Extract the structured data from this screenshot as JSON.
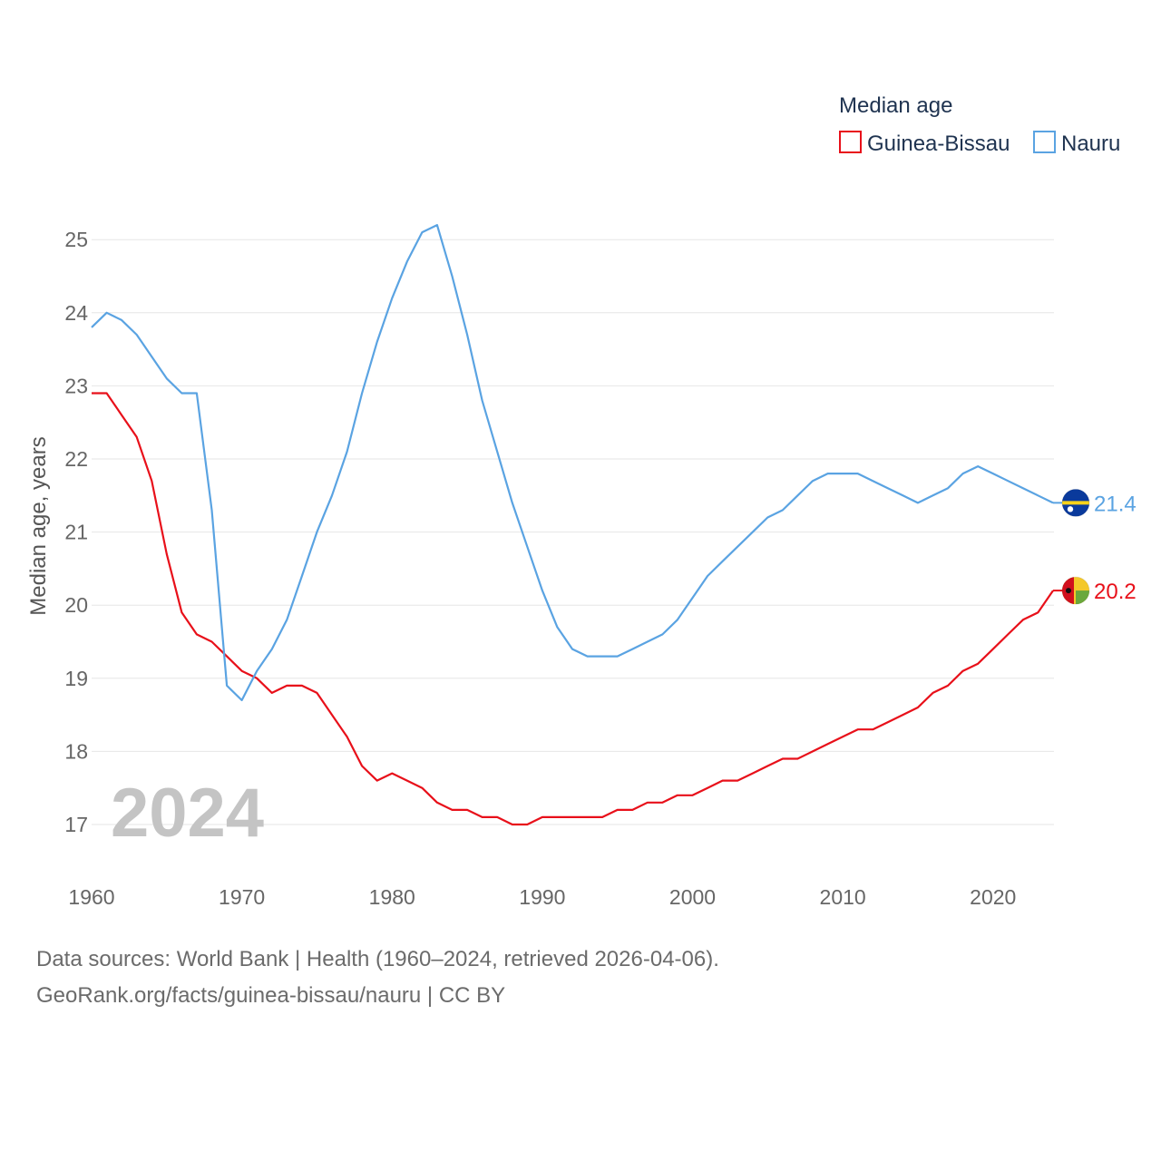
{
  "chart_data": {
    "type": "line",
    "legend_title": "Median age",
    "ylabel": "Median age, years",
    "xlabel": "",
    "watermark_year": "2024",
    "xlim": [
      1960,
      2024
    ],
    "ylim": [
      16.5,
      25.4
    ],
    "x_ticks": [
      1960,
      1970,
      1980,
      1990,
      2000,
      2010,
      2020
    ],
    "y_ticks": [
      17,
      18,
      19,
      20,
      21,
      22,
      23,
      24,
      25
    ],
    "legend_position": "top-right",
    "series": [
      {
        "name": "Guinea-Bissau",
        "color": "#e8101a",
        "end_label": "20.2",
        "flag_icon": "guinea-bissau-flag-icon",
        "x": [
          1960,
          1961,
          1962,
          1963,
          1964,
          1965,
          1966,
          1967,
          1968,
          1969,
          1970,
          1971,
          1972,
          1973,
          1974,
          1975,
          1976,
          1977,
          1978,
          1979,
          1980,
          1981,
          1982,
          1983,
          1984,
          1985,
          1986,
          1987,
          1988,
          1989,
          1990,
          1991,
          1992,
          1993,
          1994,
          1995,
          1996,
          1997,
          1998,
          1999,
          2000,
          2001,
          2002,
          2003,
          2004,
          2005,
          2006,
          2007,
          2008,
          2009,
          2010,
          2011,
          2012,
          2013,
          2014,
          2015,
          2016,
          2017,
          2018,
          2019,
          2020,
          2021,
          2022,
          2023,
          2024
        ],
        "values": [
          22.9,
          22.9,
          22.6,
          22.3,
          21.7,
          20.7,
          19.9,
          19.6,
          19.5,
          19.3,
          19.1,
          19.0,
          18.8,
          18.9,
          18.9,
          18.8,
          18.5,
          18.2,
          17.8,
          17.6,
          17.7,
          17.6,
          17.5,
          17.3,
          17.2,
          17.2,
          17.1,
          17.1,
          17.0,
          17.0,
          17.1,
          17.1,
          17.1,
          17.1,
          17.1,
          17.2,
          17.2,
          17.3,
          17.3,
          17.4,
          17.4,
          17.5,
          17.6,
          17.6,
          17.7,
          17.8,
          17.9,
          17.9,
          18.0,
          18.1,
          18.2,
          18.3,
          18.3,
          18.4,
          18.5,
          18.6,
          18.8,
          18.9,
          19.1,
          19.2,
          19.4,
          19.6,
          19.8,
          19.9,
          20.2
        ]
      },
      {
        "name": "Nauru",
        "color": "#5aa3e2",
        "end_label": "21.4",
        "flag_icon": "nauru-flag-icon",
        "x": [
          1960,
          1961,
          1962,
          1963,
          1964,
          1965,
          1966,
          1967,
          1968,
          1969,
          1970,
          1971,
          1972,
          1973,
          1974,
          1975,
          1976,
          1977,
          1978,
          1979,
          1980,
          1981,
          1982,
          1983,
          1984,
          1985,
          1986,
          1987,
          1988,
          1989,
          1990,
          1991,
          1992,
          1993,
          1994,
          1995,
          1996,
          1997,
          1998,
          1999,
          2000,
          2001,
          2002,
          2003,
          2004,
          2005,
          2006,
          2007,
          2008,
          2009,
          2010,
          2011,
          2012,
          2013,
          2014,
          2015,
          2016,
          2017,
          2018,
          2019,
          2020,
          2021,
          2022,
          2023,
          2024
        ],
        "values": [
          23.8,
          24.0,
          23.9,
          23.7,
          23.4,
          23.1,
          22.9,
          22.9,
          21.3,
          18.9,
          18.7,
          19.1,
          19.4,
          19.8,
          20.4,
          21.0,
          21.5,
          22.1,
          22.9,
          23.6,
          24.2,
          24.7,
          25.1,
          25.2,
          24.5,
          23.7,
          22.8,
          22.1,
          21.4,
          20.8,
          20.2,
          19.7,
          19.4,
          19.3,
          19.3,
          19.3,
          19.4,
          19.5,
          19.6,
          19.8,
          20.1,
          20.4,
          20.6,
          20.8,
          21.0,
          21.2,
          21.3,
          21.5,
          21.7,
          21.8,
          21.8,
          21.8,
          21.7,
          21.6,
          21.5,
          21.4,
          21.5,
          21.6,
          21.8,
          21.9,
          21.8,
          21.7,
          21.6,
          21.5,
          21.4
        ]
      }
    ]
  },
  "footer": {
    "line1": "Data sources: World Bank | Health (1960–2024, retrieved 2026-04-06).",
    "line2": "GeoRank.org/facts/guinea-bissau/nauru | CC BY"
  }
}
